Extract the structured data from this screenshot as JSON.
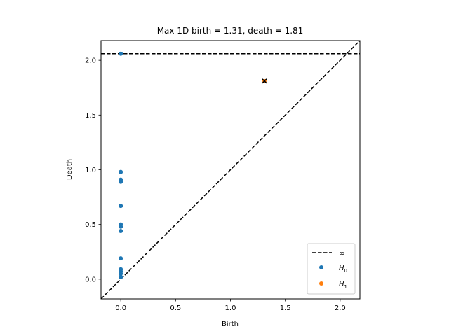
{
  "chart_data": {
    "type": "scatter",
    "title": "Max 1D birth = 1.31, death = 1.81",
    "xlabel": "Birth",
    "ylabel": "Death",
    "xlim": [
      -0.18,
      2.18
    ],
    "ylim": [
      -0.18,
      2.18
    ],
    "xticks": [
      0.0,
      0.5,
      1.0,
      1.5,
      2.0
    ],
    "yticks": [
      0.0,
      0.5,
      1.0,
      1.5,
      2.0
    ],
    "xtick_labels": [
      "0.0",
      "0.5",
      "1.0",
      "1.5",
      "2.0"
    ],
    "ytick_labels": [
      "0.0",
      "0.5",
      "1.0",
      "1.5",
      "2.0"
    ],
    "infinity_line": 2.06,
    "legend_position": "lower-right",
    "legend": {
      "infinity": "∞",
      "h0_base": "H",
      "h0_sub": "0",
      "h1_base": "H",
      "h1_sub": "1"
    },
    "series": [
      {
        "key": "H0",
        "color": "#1f77b4",
        "points": [
          [
            0,
            2.06
          ],
          [
            0,
            0.98
          ],
          [
            0,
            0.91
          ],
          [
            0,
            0.89
          ],
          [
            0,
            0.67
          ],
          [
            0,
            0.5
          ],
          [
            0,
            0.48
          ],
          [
            0,
            0.44
          ],
          [
            0,
            0.19
          ],
          [
            0,
            0.09
          ],
          [
            0,
            0.07
          ],
          [
            0,
            0.05
          ],
          [
            0,
            0.02
          ]
        ]
      },
      {
        "key": "H1",
        "color": "#ff7f0e",
        "points": [
          [
            1.31,
            1.81
          ]
        ]
      }
    ],
    "highlight": {
      "x": 1.31,
      "y": 1.81,
      "marker": "x",
      "color": "#000000"
    }
  }
}
